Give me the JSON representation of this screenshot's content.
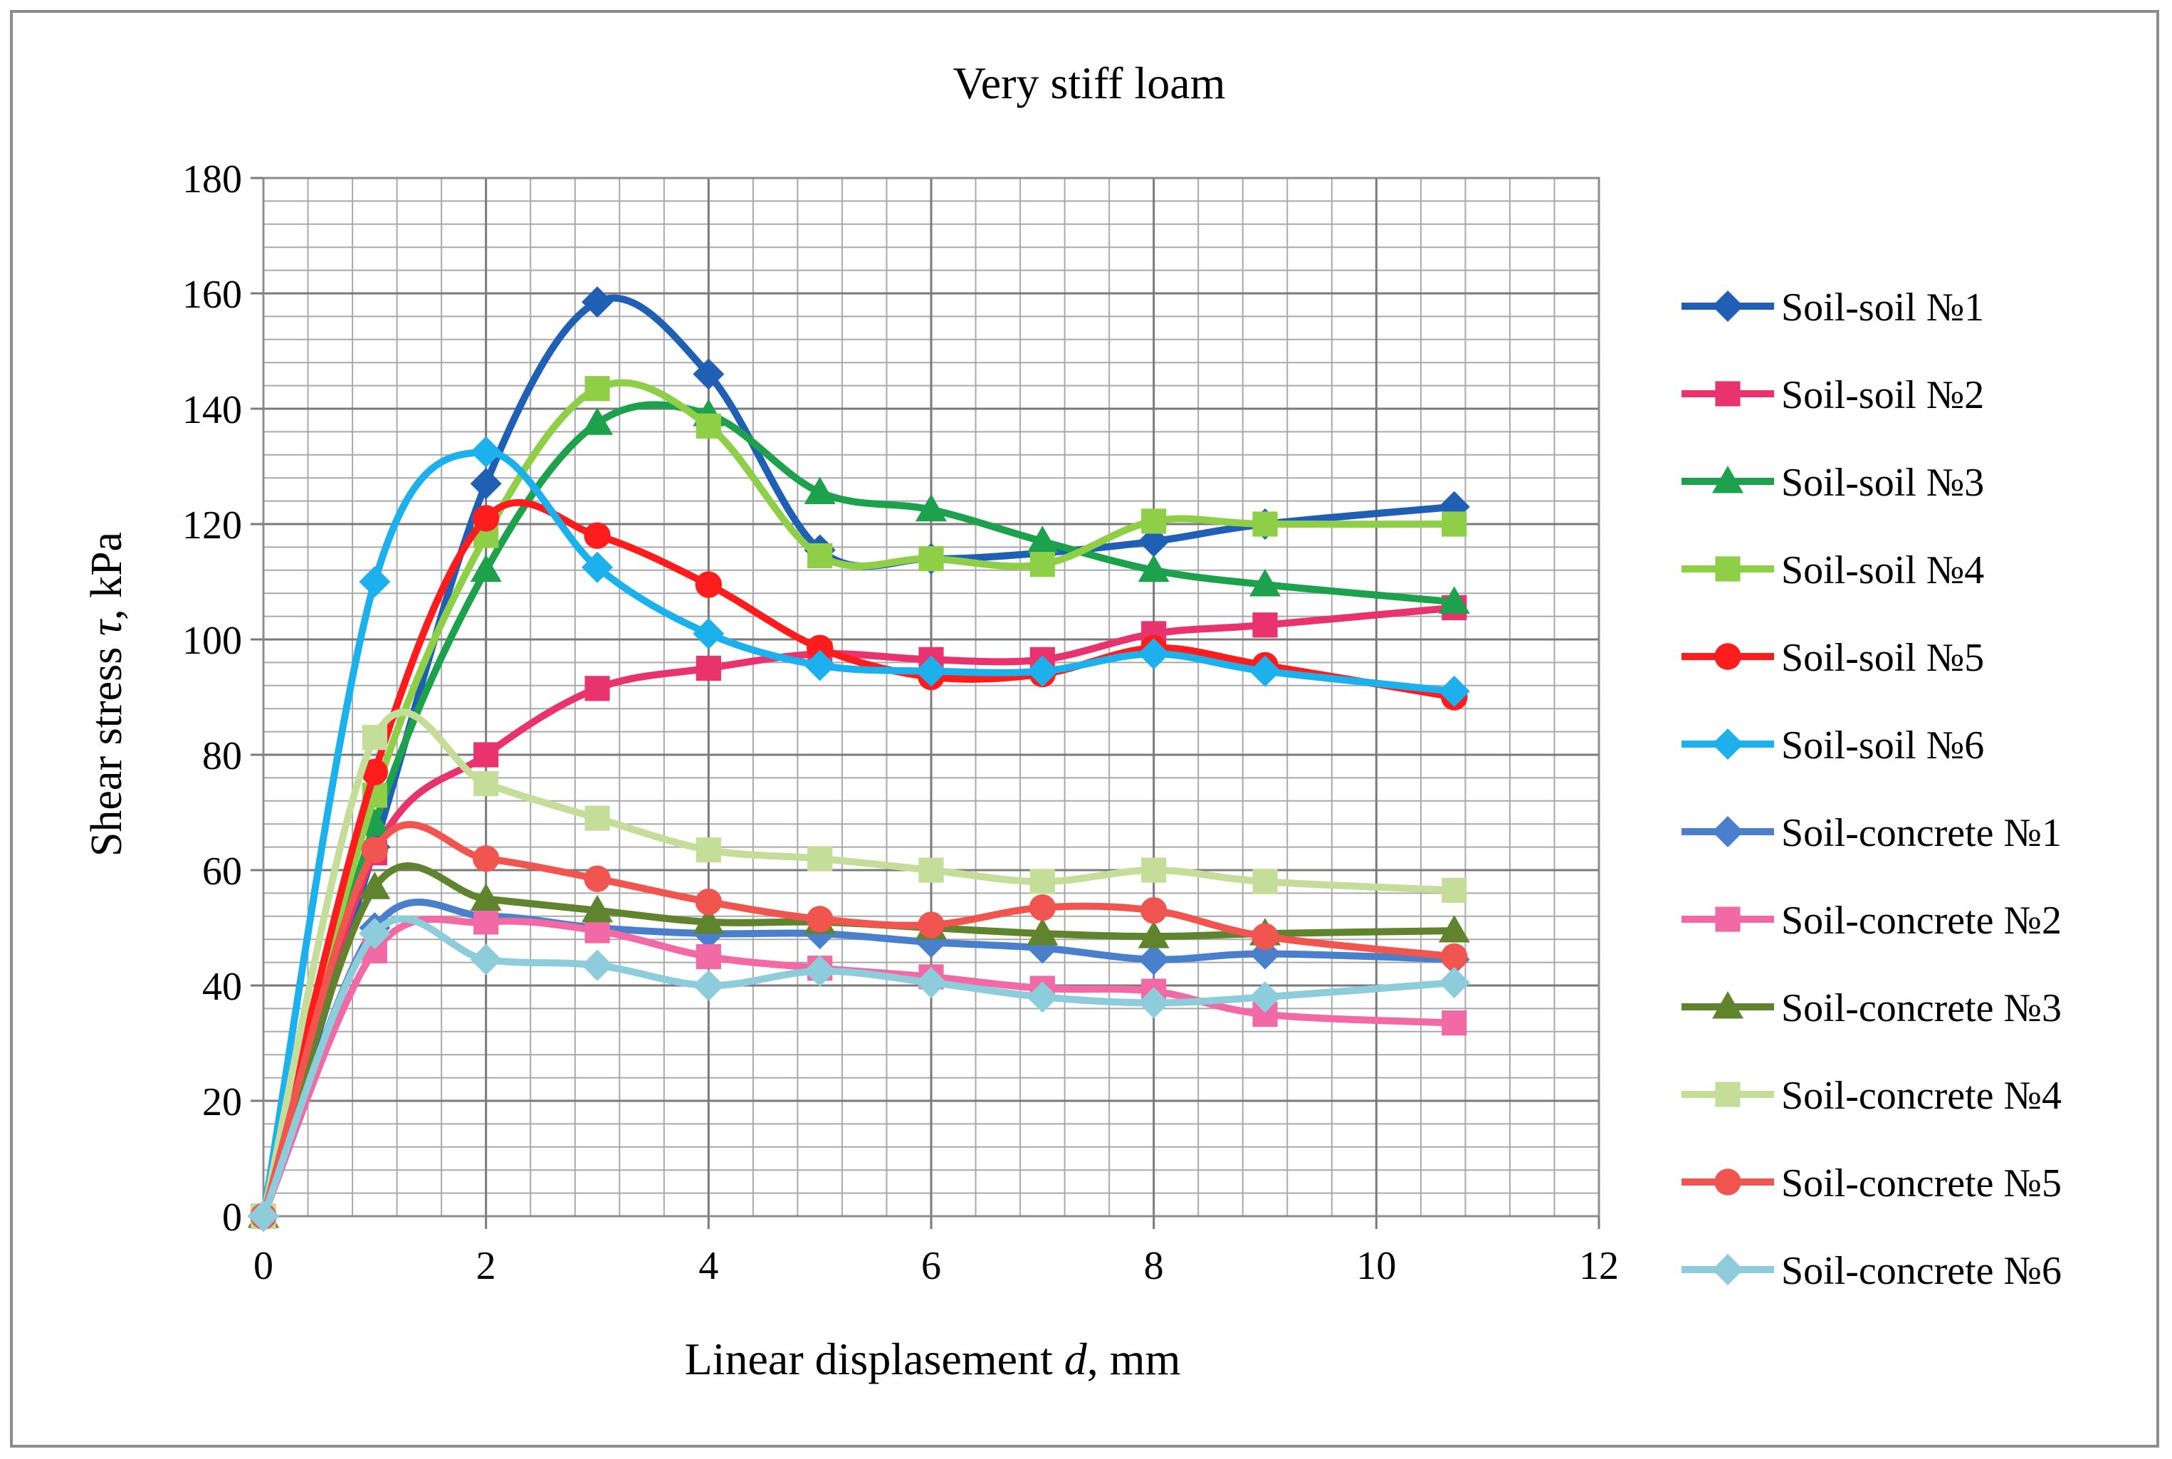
{
  "chart_data": {
    "type": "line",
    "title": "Very stiff loam",
    "xlabel_main": "Linear displasement ",
    "xlabel_var": "d",
    "xlabel_unit": ", mm",
    "ylabel_main": "Shear stress ",
    "ylabel_var": "τ",
    "ylabel_unit": ", kPa",
    "xlim": [
      0,
      12
    ],
    "ylim": [
      0,
      180
    ],
    "x_ticks": [
      0,
      2,
      4,
      6,
      8,
      10,
      12
    ],
    "y_ticks": [
      0,
      20,
      40,
      60,
      80,
      100,
      120,
      140,
      160,
      180
    ],
    "minor_x_step": 0.4,
    "minor_y_step": 4,
    "grid": true,
    "smooth": true,
    "legend_position": "right",
    "x": [
      0,
      1,
      2,
      3,
      4,
      5,
      6,
      7,
      8,
      9,
      10.7
    ],
    "series": [
      {
        "name": "Soil-soil №1",
        "color": "#1f5fb4",
        "marker": "diamond",
        "values": [
          0,
          64,
          127,
          158.5,
          146,
          115.5,
          114,
          115,
          117,
          120,
          123
        ]
      },
      {
        "name": "Soil-soil №2",
        "color": "#e8336e",
        "marker": "square",
        "values": [
          0,
          63,
          80,
          91.5,
          95,
          97.5,
          96.5,
          96.5,
          101,
          102.5,
          105.5
        ]
      },
      {
        "name": "Soil-soil №3",
        "color": "#1ea14c",
        "marker": "triangle",
        "values": [
          0,
          68,
          112,
          137.5,
          139,
          125.5,
          122.5,
          117,
          112,
          109.5,
          106.5
        ]
      },
      {
        "name": "Soil-soil №4",
        "color": "#8fcf48",
        "marker": "square",
        "values": [
          0,
          73,
          118,
          143.5,
          137,
          114.5,
          114,
          113,
          120.5,
          120,
          120
        ]
      },
      {
        "name": "Soil-soil №5",
        "color": "#ff1c1c",
        "marker": "circle",
        "values": [
          0,
          77,
          121,
          118,
          109.5,
          98.5,
          93.5,
          94,
          98.5,
          95.5,
          90
        ]
      },
      {
        "name": "Soil-soil №6",
        "color": "#1cb1ec",
        "marker": "diamond",
        "values": [
          0,
          110,
          132.5,
          112.5,
          101,
          95.5,
          94.5,
          94.5,
          97.5,
          94.5,
          91
        ]
      },
      {
        "name": "Soil-concrete №1",
        "color": "#4a7fcb",
        "marker": "diamond",
        "values": [
          0,
          50,
          52,
          50,
          49,
          49,
          47.5,
          46.5,
          44.5,
          45.5,
          44.5
        ]
      },
      {
        "name": "Soil-concrete №2",
        "color": "#f26aa5",
        "marker": "square",
        "values": [
          0,
          46,
          51,
          49.5,
          45,
          43,
          41.5,
          39.5,
          39,
          35,
          33.5
        ]
      },
      {
        "name": "Soil-concrete №3",
        "color": "#60832d",
        "marker": "triangle",
        "values": [
          0,
          57,
          55,
          53,
          51,
          51,
          50,
          49,
          48.5,
          49,
          49.5
        ]
      },
      {
        "name": "Soil-concrete №4",
        "color": "#c4de9a",
        "marker": "square",
        "values": [
          0,
          83,
          75,
          69,
          63.5,
          62,
          60,
          58,
          60,
          58,
          56.5
        ]
      },
      {
        "name": "Soil-concrete №5",
        "color": "#f0564f",
        "marker": "circle",
        "values": [
          0,
          63.5,
          62,
          58.5,
          54.5,
          51.5,
          50.5,
          53.5,
          53,
          48.5,
          45
        ]
      },
      {
        "name": "Soil-concrete №6",
        "color": "#8dcddb",
        "marker": "diamond",
        "values": [
          0,
          49,
          44.5,
          43.5,
          40,
          42.5,
          40.5,
          38,
          37,
          38,
          40.5
        ]
      }
    ]
  }
}
